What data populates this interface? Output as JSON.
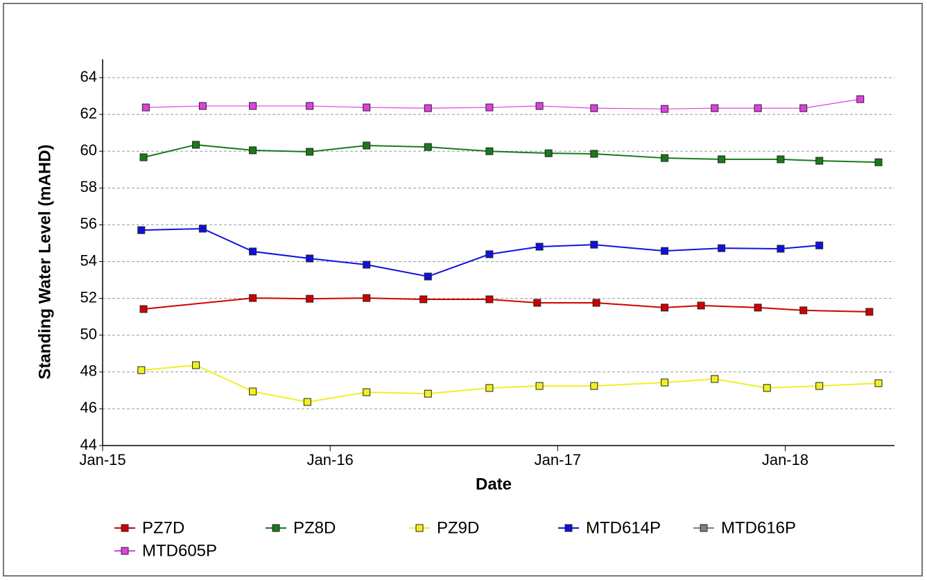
{
  "chart_data": {
    "type": "line",
    "xlabel": "Date",
    "ylabel": "Standing Water Level (mAHD)",
    "xlim": [
      2015,
      2018.48
    ],
    "xticks": [
      {
        "value": 2015,
        "label": "Jan-15"
      },
      {
        "value": 2016,
        "label": "Jan-16"
      },
      {
        "value": 2017,
        "label": "Jan-17"
      },
      {
        "value": 2018,
        "label": "Jan-18"
      }
    ],
    "ylim": [
      44,
      65
    ],
    "yticks": [
      44,
      46,
      48,
      50,
      52,
      54,
      56,
      58,
      60,
      62,
      64
    ],
    "grid": true,
    "series": [
      {
        "name": "PZ7D",
        "color": "#d00000",
        "x": [
          2015.18,
          2015.66,
          2015.91,
          2016.16,
          2016.41,
          2016.7,
          2016.91,
          2017.17,
          2017.47,
          2017.63,
          2017.88,
          2018.08,
          2018.37
        ],
        "values": [
          51.42,
          52.02,
          51.98,
          52.02,
          51.95,
          51.95,
          51.76,
          51.76,
          51.5,
          51.61,
          51.5,
          51.35,
          51.27
        ]
      },
      {
        "name": "PZ8D",
        "color": "#1a7a1a",
        "x": [
          2015.18,
          2015.41,
          2015.66,
          2015.91,
          2016.16,
          2016.43,
          2016.7,
          2016.96,
          2017.16,
          2017.47,
          2017.72,
          2017.98,
          2018.15,
          2018.41
        ],
        "values": [
          59.67,
          60.35,
          60.05,
          59.97,
          60.31,
          60.23,
          60.0,
          59.89,
          59.86,
          59.63,
          59.56,
          59.56,
          59.48,
          59.4
        ]
      },
      {
        "name": "PZ9D",
        "color": "#f0f020",
        "x": [
          2015.17,
          2015.41,
          2015.66,
          2015.9,
          2016.16,
          2016.43,
          2016.7,
          2016.92,
          2017.16,
          2017.47,
          2017.69,
          2017.92,
          2018.15,
          2018.41
        ],
        "values": [
          48.1,
          48.37,
          46.94,
          46.37,
          46.9,
          46.82,
          47.13,
          47.24,
          47.24,
          47.43,
          47.62,
          47.13,
          47.24,
          47.39
        ]
      },
      {
        "name": "MTD614P",
        "color": "#1010e0",
        "x": [
          2015.17,
          2015.44,
          2015.66,
          2015.91,
          2016.16,
          2016.43,
          2016.7,
          2016.92,
          2017.16,
          2017.47,
          2017.72,
          2017.98,
          2018.15
        ],
        "values": [
          55.71,
          55.79,
          54.55,
          54.17,
          53.83,
          53.19,
          54.4,
          54.81,
          54.92,
          54.58,
          54.73,
          54.7,
          54.88
        ]
      },
      {
        "name": "MTD616P",
        "color": "#808080",
        "x": [],
        "values": []
      },
      {
        "name": "MTD605P",
        "color": "#e040e0",
        "x": [
          2015.19,
          2015.44,
          2015.66,
          2015.91,
          2016.16,
          2016.43,
          2016.7,
          2016.92,
          2017.16,
          2017.47,
          2017.69,
          2017.88,
          2018.08,
          2018.33
        ],
        "values": [
          62.38,
          62.46,
          62.46,
          62.46,
          62.38,
          62.34,
          62.38,
          62.46,
          62.34,
          62.3,
          62.34,
          62.34,
          62.34,
          62.83
        ]
      }
    ]
  }
}
